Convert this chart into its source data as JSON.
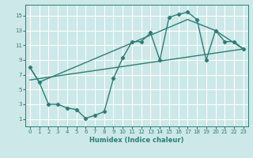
{
  "xlabel": "Humidex (Indice chaleur)",
  "bg_color": "#cce8e8",
  "grid_color": "#ffffff",
  "line_color": "#2e7d74",
  "xlim": [
    -0.5,
    23.5
  ],
  "ylim": [
    0,
    16.5
  ],
  "xticks": [
    0,
    1,
    2,
    3,
    4,
    5,
    6,
    7,
    8,
    9,
    10,
    11,
    12,
    13,
    14,
    15,
    16,
    17,
    18,
    19,
    20,
    21,
    22,
    23
  ],
  "yticks": [
    1,
    3,
    5,
    7,
    9,
    11,
    13,
    15
  ],
  "line1_x": [
    0,
    1,
    2,
    3,
    4,
    5,
    6,
    7,
    8,
    9,
    10,
    11,
    12,
    13,
    14,
    15,
    16,
    17,
    18,
    19,
    20,
    21,
    22,
    23
  ],
  "line1_y": [
    8,
    6,
    3,
    3,
    2.5,
    2.3,
    1.1,
    1.5,
    2.0,
    6.5,
    9.3,
    11.5,
    11.5,
    12.7,
    9.0,
    14.8,
    15.2,
    15.5,
    14.5,
    9.0,
    13.0,
    11.5,
    11.5,
    10.5
  ],
  "line2_x": [
    0,
    1,
    17,
    20,
    23
  ],
  "line2_y": [
    8,
    6,
    14.5,
    13.0,
    10.5
  ],
  "line3_x": [
    0,
    23
  ],
  "line3_y": [
    6.3,
    10.5
  ]
}
